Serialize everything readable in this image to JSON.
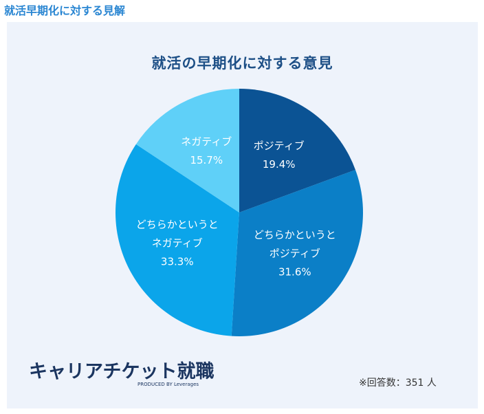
{
  "header": {
    "title": "就活早期化に対する見解"
  },
  "chart_data": {
    "type": "pie",
    "title": "就活の早期化に対する意見",
    "categories": [
      "ポジティブ",
      "どちらかというとポジティブ",
      "どちらかというとネガティブ",
      "ネガティブ"
    ],
    "values": [
      19.4,
      31.6,
      33.3,
      15.7
    ],
    "value_labels": [
      "19.4%",
      "31.6%",
      "33.3%",
      "15.7%"
    ],
    "colors": [
      "#0b5394",
      "#0b7fc7",
      "#0ba5ea",
      "#5fd0f8"
    ]
  },
  "logo": {
    "name": "キャリアチケット就職",
    "byline": "PRODUCED BY Leverages"
  },
  "note": "※回答数：351 人"
}
